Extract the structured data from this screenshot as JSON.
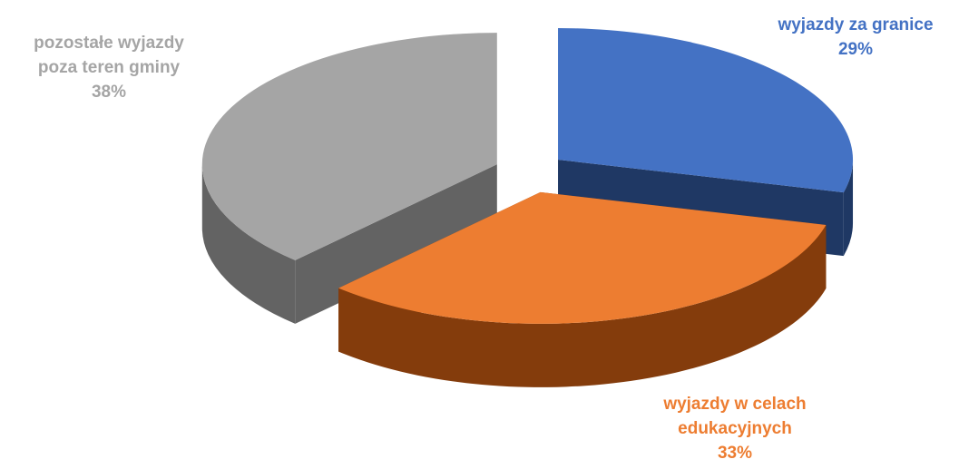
{
  "chart_data": {
    "type": "pie",
    "style": "3d-exploded",
    "slices": [
      {
        "label_lines": [
          "wyjazdy za granice"
        ],
        "value": 29,
        "value_label": "29%",
        "color": "#4472C4",
        "side_color": "#1F3864"
      },
      {
        "label_lines": [
          "wyjazdy w celach",
          "edukacyjnych"
        ],
        "value": 33,
        "value_label": "33%",
        "color": "#ED7D31",
        "side_color": "#843C0C"
      },
      {
        "label_lines": [
          "pozostałe wyjazdy",
          "poza teren gminy"
        ],
        "value": 38,
        "value_label": "38%",
        "color": "#A5A5A5",
        "side_color": "#636363"
      }
    ],
    "legend": "none"
  }
}
